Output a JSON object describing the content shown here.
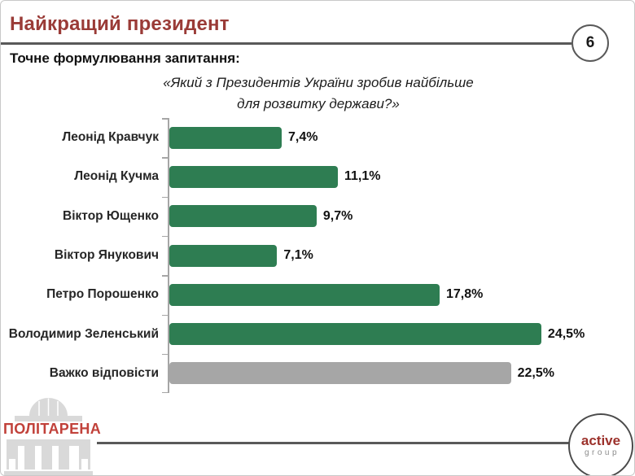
{
  "page": {
    "number": "6"
  },
  "header": {
    "title": "Найкращий президент"
  },
  "question": {
    "label": "Точне формулювання запитання:",
    "line1": "«Який з Президентів України зробив найбільше",
    "line2": "для розвитку держави?»"
  },
  "chart_data": {
    "type": "bar",
    "orientation": "horizontal",
    "categories": [
      "Леонід Кравчук",
      "Леонід Кучма",
      "Віктор Ющенко",
      "Віктор Янукович",
      "Петро Порошенко",
      "Володимир Зеленський",
      "Важко відповісти"
    ],
    "values": [
      7.4,
      11.1,
      9.7,
      7.1,
      17.8,
      24.5,
      22.5
    ],
    "value_labels": [
      "7,4%",
      "11,1%",
      "9,7%",
      "7,1%",
      "17,8%",
      "24,5%",
      "22,5%"
    ],
    "bar_colors": [
      "#2e7d52",
      "#2e7d52",
      "#2e7d52",
      "#2e7d52",
      "#2e7d52",
      "#2e7d52",
      "#a6a6a6"
    ],
    "xlim": [
      0,
      26
    ],
    "grid": false,
    "legend": false,
    "title": "Найкращий президент",
    "xlabel": "",
    "ylabel": ""
  },
  "footer": {
    "politarena_label": "ПОЛІТАРЕНА",
    "brand_line1": "active",
    "brand_line2": "group"
  },
  "colors": {
    "title_red": "#9a3b37",
    "bar_green": "#2e7d52",
    "bar_gray": "#a6a6a6",
    "rule_gray": "#595959",
    "politarena_red": "#c1413a",
    "brand_red": "#9c312b"
  }
}
